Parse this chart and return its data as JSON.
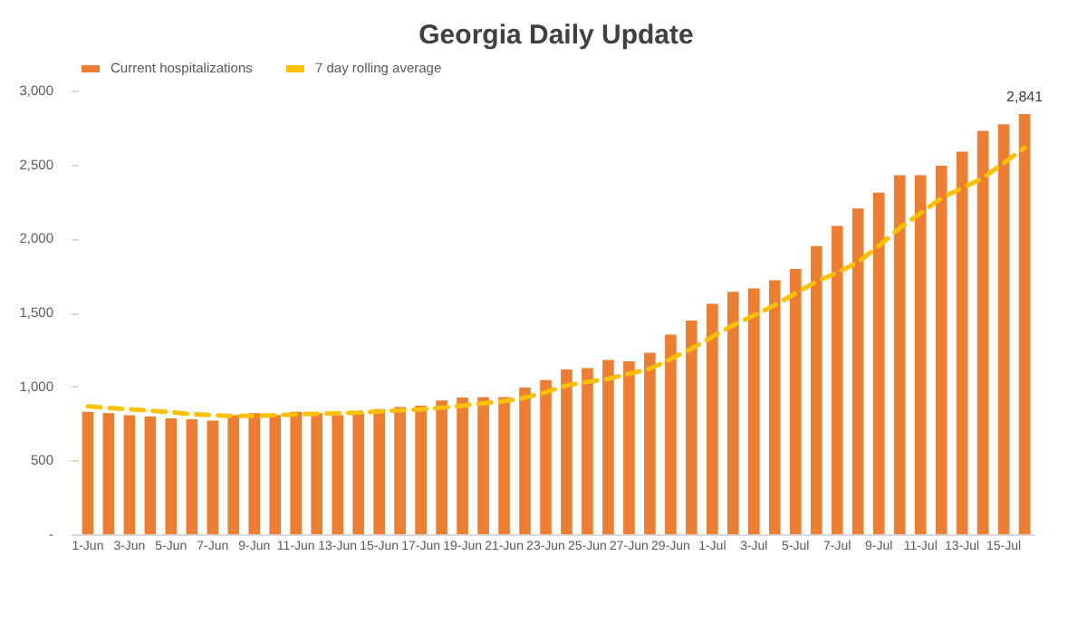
{
  "chart_data": {
    "type": "bar",
    "title": "Georgia Daily Update",
    "categories": [
      "1-Jun",
      null,
      "3-Jun",
      null,
      "5-Jun",
      null,
      "7-Jun",
      null,
      "9-Jun",
      null,
      "11-Jun",
      null,
      "13-Jun",
      null,
      "15-Jun",
      null,
      "17-Jun",
      null,
      "19-Jun",
      null,
      "21-Jun",
      null,
      "23-Jun",
      null,
      "25-Jun",
      null,
      "27-Jun",
      null,
      "29-Jun",
      null,
      "1-Jul",
      null,
      "3-Jul",
      null,
      "5-Jul",
      null,
      "7-Jul",
      null,
      "9-Jul",
      null,
      "11-Jul",
      null,
      "13-Jul",
      null,
      "15-Jul",
      null
    ],
    "series": [
      {
        "name": "Current hospitalizations",
        "color": "#ed7d31",
        "values": [
          828,
          819,
          805,
          796,
          783,
          778,
          769,
          805,
          819,
          805,
          828,
          819,
          805,
          819,
          846,
          860,
          869,
          905,
          924,
          928,
          928,
          992,
          1042,
          1114,
          1123,
          1178,
          1169,
          1228,
          1350,
          1445,
          1558,
          1640,
          1663,
          1717,
          1794,
          1948,
          2084,
          2202,
          2310,
          2428,
          2428,
          2492,
          2587,
          2727,
          2772,
          2841
        ],
        "value_labels": [
          null,
          null,
          null,
          null,
          null,
          null,
          null,
          null,
          null,
          null,
          null,
          null,
          null,
          null,
          null,
          null,
          null,
          null,
          null,
          null,
          null,
          null,
          null,
          null,
          null,
          null,
          null,
          null,
          null,
          null,
          null,
          null,
          null,
          null,
          null,
          null,
          null,
          null,
          null,
          null,
          null,
          null,
          null,
          null,
          null,
          "2,841"
        ]
      },
      {
        "name": "7 day rolling average",
        "type": "line",
        "color": "#ffc000",
        "line_style": "dashed",
        "values": [
          865,
          855,
          845,
          835,
          825,
          812,
          805,
          800,
          800,
          805,
          810,
          815,
          818,
          822,
          830,
          838,
          845,
          855,
          870,
          885,
          900,
          924,
          960,
          1006,
          1030,
          1051,
          1085,
          1119,
          1185,
          1255,
          1335,
          1413,
          1480,
          1549,
          1630,
          1708,
          1770,
          1840,
          1950,
          2070,
          2170,
          2274,
          2340,
          2410,
          2510,
          2614
        ]
      }
    ],
    "ylim": [
      0,
      3000
    ],
    "yticks": [
      {
        "value": 0,
        "label": "-"
      },
      500,
      {
        "value": 1000,
        "label": "1,000"
      },
      {
        "value": 1500,
        "label": "1,500"
      },
      {
        "value": 2000,
        "label": "2,000"
      },
      {
        "value": 2500,
        "label": "2,500"
      },
      {
        "value": 3000,
        "label": "3,000"
      }
    ],
    "grid": false,
    "legend": "top",
    "marker": "none"
  }
}
